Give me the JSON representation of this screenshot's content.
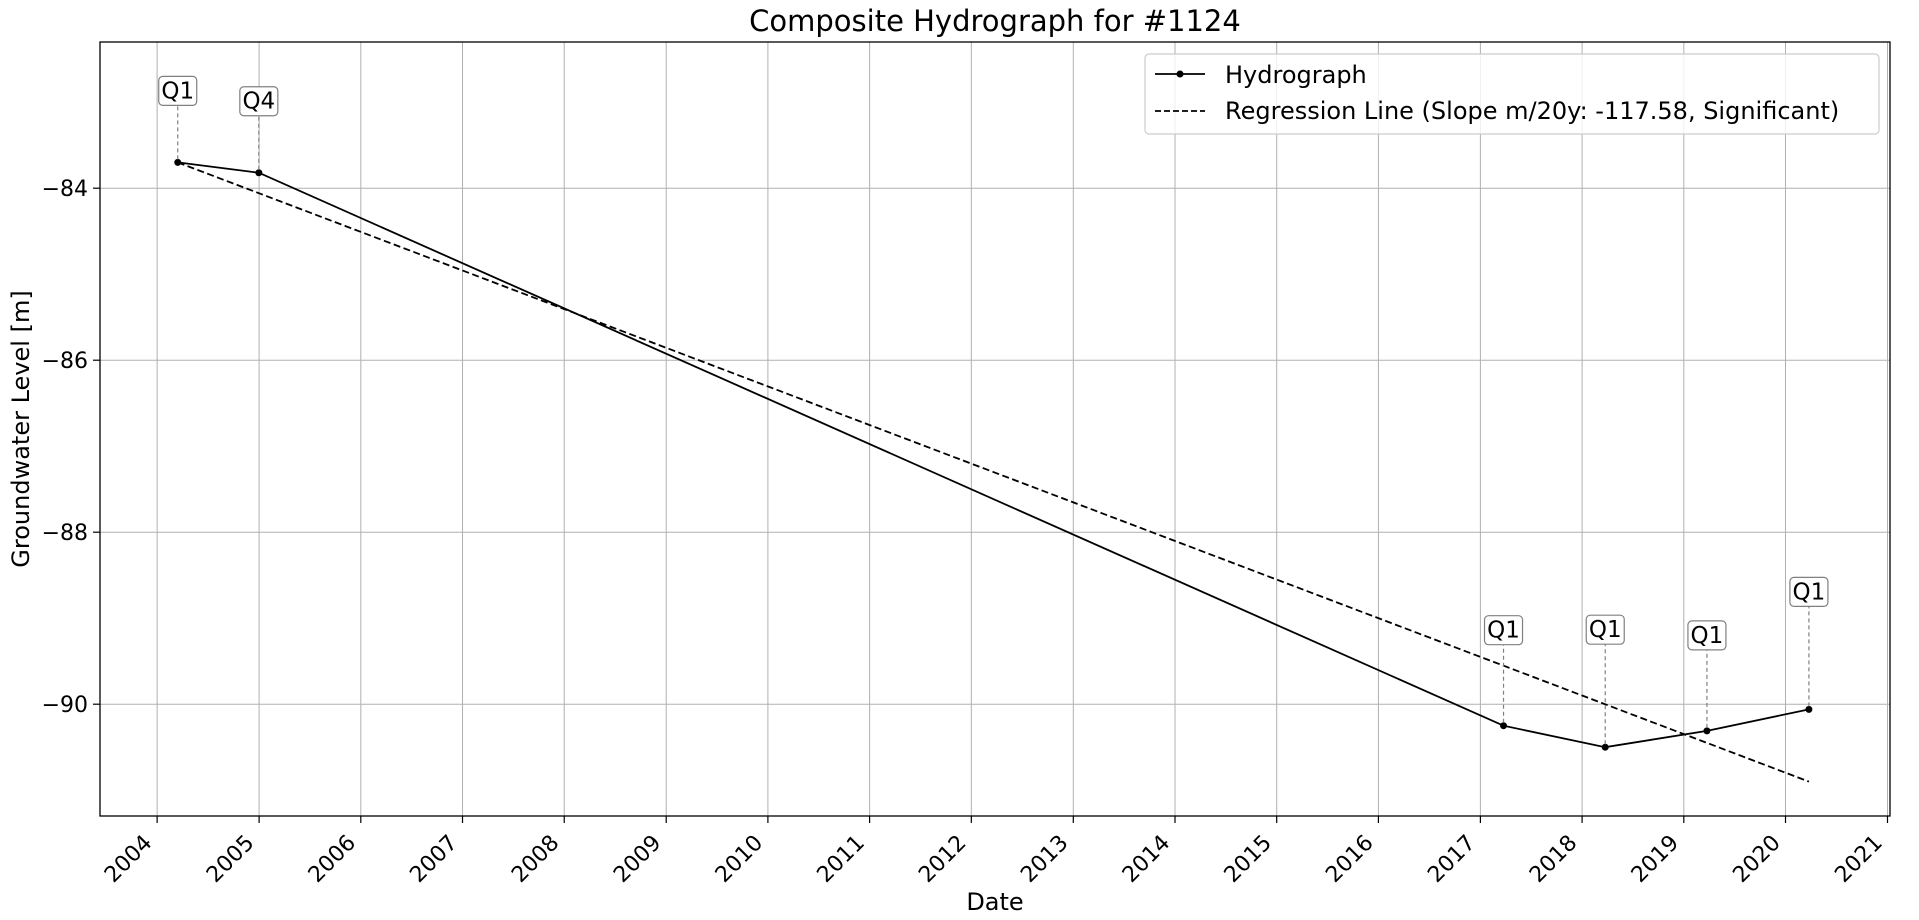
{
  "chart_data": {
    "type": "line",
    "title": "Composite Hydrograph for  #1124",
    "xlabel": "Date",
    "ylabel": "Groundwater Level [m]",
    "x_ticks": [
      "2004",
      "2005",
      "2006",
      "2007",
      "2008",
      "2009",
      "2010",
      "2011",
      "2012",
      "2013",
      "2014",
      "2015",
      "2016",
      "2017",
      "2018",
      "2019",
      "2020",
      "2021"
    ],
    "y_ticks": [
      -84,
      -86,
      -88,
      -90
    ],
    "xlim": [
      "2003-06-10",
      "2021-01-10"
    ],
    "ylim": [
      -91.3,
      -82.3
    ],
    "grid": true,
    "legend_position": "top-right",
    "series": [
      {
        "name": "Hydrograph",
        "style": "solid-with-markers",
        "color": "#000000",
        "points": [
          {
            "date": "2004-03-15",
            "value": -83.7,
            "label": "Q1"
          },
          {
            "date": "2004-12-31",
            "value": -83.82,
            "label": "Q4"
          },
          {
            "date": "2017-03-25",
            "value": -90.25,
            "label": "Q1"
          },
          {
            "date": "2018-03-25",
            "value": -90.5,
            "label": "Q1"
          },
          {
            "date": "2019-03-25",
            "value": -90.31,
            "label": "Q1"
          },
          {
            "date": "2020-03-25",
            "value": -90.06,
            "label": "Q1"
          }
        ]
      },
      {
        "name": "Regression Line (Slope m/20y: -117.58, Significant)",
        "style": "dashed",
        "color": "#000000",
        "points": [
          {
            "date": "2004-03-15",
            "value": -83.7
          },
          {
            "date": "2020-03-25",
            "value": -90.9
          }
        ]
      }
    ]
  }
}
